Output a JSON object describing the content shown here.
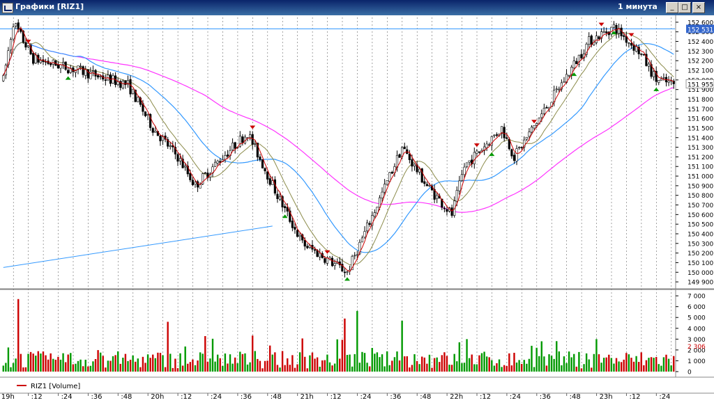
{
  "window": {
    "title": "Графики [RIZ1]",
    "timeframe": "1 минута",
    "buttons": {
      "minimize": "_",
      "maximize": "□",
      "close": "×"
    }
  },
  "chart_data": [
    {
      "type": "candlestick",
      "ylim": [
        149850,
        152650
      ],
      "y_ticks": [
        "149 900",
        "150 000",
        "150 100",
        "150 200",
        "150 300",
        "150 400",
        "150 500",
        "150 600",
        "150 700",
        "150 800",
        "150 900",
        "151 000",
        "151 100",
        "151 200",
        "151 300",
        "151 400",
        "151 500",
        "151 600",
        "151 700",
        "151 800",
        "151 900",
        "152 000",
        "152 100",
        "152 200",
        "152 300",
        "152 400",
        "152 500",
        "152 600"
      ],
      "current_price_label": "152 531",
      "last_price_label": "151 955",
      "horizontal_line": 152531,
      "colors": {
        "up": "#009900",
        "down": "#cc0000",
        "body": "#000000",
        "ma_fast": "#cc0000",
        "ma_mid": "#8b8b4a",
        "ma_slow": "#3399ff",
        "ma_long": "#ff33ff",
        "trendline": "#3399ff",
        "hline": "#3399ff",
        "grid": "#666666"
      },
      "trendline": [
        [
          0,
          150050
        ],
        [
          108,
          150480
        ]
      ]
    },
    {
      "type": "bar",
      "name": "RIZ1 [Volume]",
      "ylim": [
        0,
        7200
      ],
      "y_ticks": [
        "0",
        "1 000",
        "2 000",
        "3 000",
        "4 000",
        "5 000",
        "6 000",
        "7 000"
      ],
      "current_volume_label": "2 306"
    }
  ],
  "x_axis": {
    "labels": [
      "19h",
      ":12",
      ":24",
      ":36",
      ":48",
      "20h",
      ":12",
      ":24",
      ":36",
      ":48",
      "21h",
      ":12",
      ":24",
      ":36",
      ":48",
      "22h",
      ":12",
      ":24",
      ":36",
      ":48",
      "23h",
      ":12",
      ":24",
      ":36",
      ":48"
    ]
  },
  "legend": {
    "label": "RIZ1 [Volume]",
    "color": "#cc0000"
  }
}
